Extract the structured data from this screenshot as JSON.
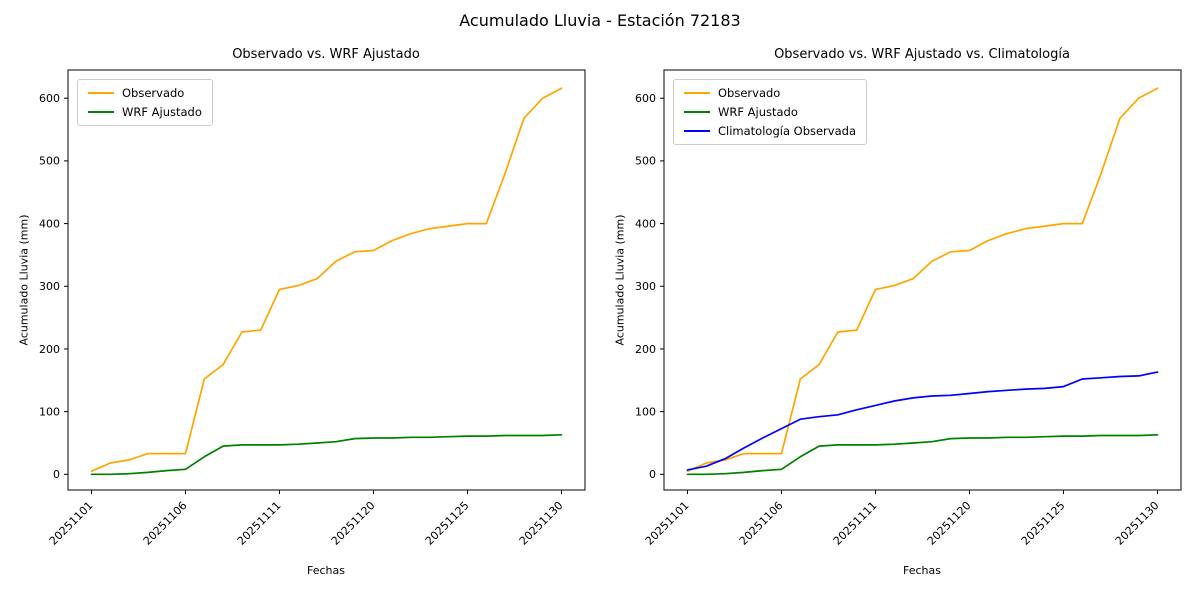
{
  "figure_title": "Acumulado Lluvia - Estación 72183",
  "colors": {
    "observado": "#FFA500",
    "wrf": "#008000",
    "climatologia": "#0000FF"
  },
  "chart_data": [
    {
      "type": "line",
      "title": "Observado vs. WRF Ajustado",
      "xlabel": "Fechas",
      "ylabel": "Acumulado Lluvia (mm)",
      "yticks": [
        0,
        100,
        200,
        300,
        400,
        500,
        600
      ],
      "ylim": [
        -25,
        645
      ],
      "grid": false,
      "legend_position": "upper-left",
      "xtick_labels": [
        "20251101",
        "20251106",
        "20251111",
        "20251120",
        "20251125",
        "20251130"
      ],
      "xtick_indices": [
        0,
        5,
        10,
        15,
        20,
        25
      ],
      "series": [
        {
          "name": "Observado",
          "color": "#FFA500",
          "values": [
            5,
            18,
            23,
            33,
            33,
            33,
            152,
            175,
            227,
            230,
            295,
            301,
            312,
            340,
            355,
            357,
            373,
            384,
            392,
            396,
            400,
            400,
            480,
            568,
            600,
            616
          ]
        },
        {
          "name": "WRF Ajustado",
          "color": "#008000",
          "values": [
            0,
            0,
            1,
            3,
            6,
            8,
            28,
            45,
            47,
            47,
            47,
            48,
            50,
            52,
            57,
            58,
            58,
            59,
            59,
            60,
            61,
            61,
            62,
            62,
            62,
            63
          ]
        }
      ]
    },
    {
      "type": "line",
      "title": "Observado vs. WRF Ajustado vs. Climatología",
      "xlabel": "Fechas",
      "ylabel": "Acumulado Lluvia (mm)",
      "yticks": [
        0,
        100,
        200,
        300,
        400,
        500,
        600
      ],
      "ylim": [
        -25,
        645
      ],
      "grid": false,
      "legend_position": "upper-left",
      "xtick_labels": [
        "20251101",
        "20251106",
        "20251111",
        "20251120",
        "20251125",
        "20251130"
      ],
      "xtick_indices": [
        0,
        5,
        10,
        15,
        20,
        25
      ],
      "series": [
        {
          "name": "Observado",
          "color": "#FFA500",
          "values": [
            5,
            18,
            23,
            33,
            33,
            33,
            152,
            175,
            227,
            230,
            295,
            301,
            312,
            340,
            355,
            357,
            373,
            384,
            392,
            396,
            400,
            400,
            480,
            568,
            600,
            616
          ]
        },
        {
          "name": "WRF Ajustado",
          "color": "#008000",
          "values": [
            0,
            0,
            1,
            3,
            6,
            8,
            28,
            45,
            47,
            47,
            47,
            48,
            50,
            52,
            57,
            58,
            58,
            59,
            59,
            60,
            61,
            61,
            62,
            62,
            62,
            63
          ]
        },
        {
          "name": "Climatología Observada",
          "color": "#0000FF",
          "values": [
            7,
            13,
            25,
            42,
            58,
            73,
            88,
            92,
            95,
            103,
            110,
            117,
            122,
            125,
            126,
            129,
            132,
            134,
            136,
            137,
            140,
            152,
            154,
            156,
            157,
            163
          ]
        }
      ]
    }
  ]
}
